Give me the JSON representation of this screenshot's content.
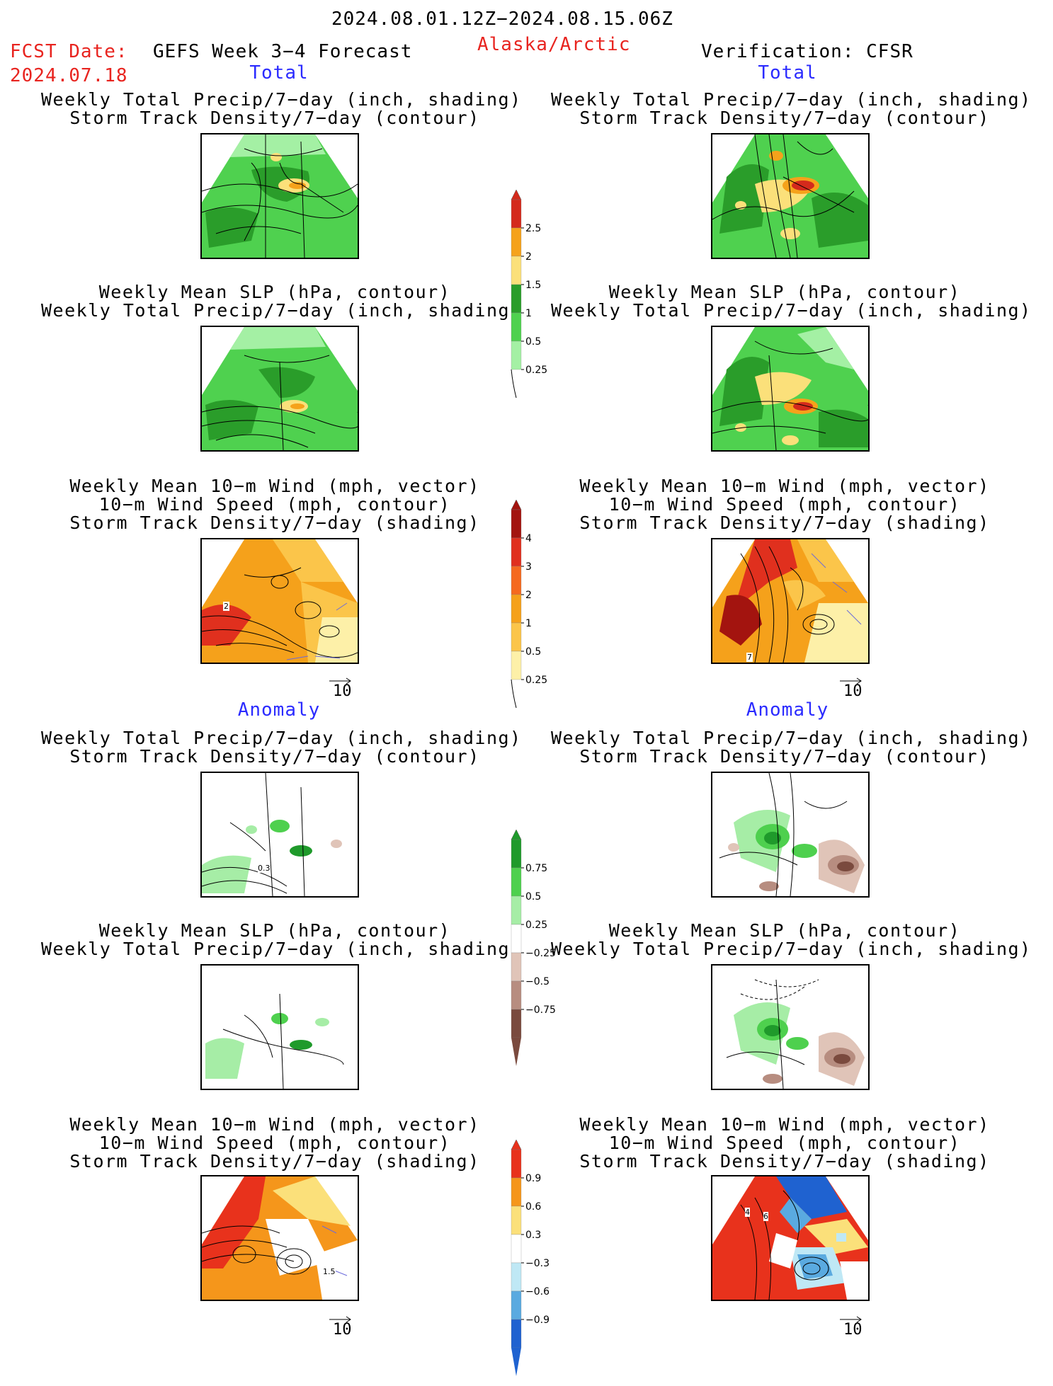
{
  "header": {
    "date_range": "2024.08.01.12Z−2024.08.15.06Z",
    "fcst_label": "FCST Date:",
    "fcst_date": "2024.07.18",
    "forecast_title": "GEFS Week 3−4 Forecast",
    "region": "Alaska/Arctic",
    "verification": "Verification: CFSR"
  },
  "sections": {
    "total_left": "Total",
    "total_right": "Total",
    "anomaly_left": "Anomaly",
    "anomaly_right": "Anomaly"
  },
  "panel_titles": {
    "precip_storm": "Weekly Total Precip/7−day (inch, shading)\nStorm Track Density/7−day (contour)",
    "slp_precip": "Weekly Mean SLP (hPa, contour)\nWeekly Total Precip/7−day (inch, shading)",
    "wind_storm": "Weekly Mean 10−m Wind (mph, vector)\n10−m Wind Speed (mph, contour)\nStorm Track Density/7−day (shading)"
  },
  "vector_ref_label": "10",
  "contour_labels": {
    "wind_total_left": "2",
    "wind_total_right": "7",
    "precip_anom_left": "0.3",
    "wind_anom_left": "1.5",
    "wind_anom_right_a": "4",
    "wind_anom_right_b": "6"
  },
  "colorbars": {
    "precip_total": {
      "ticks": [
        "2.5",
        "2",
        "1.5",
        "1",
        "0.5",
        "0.25"
      ],
      "colors": [
        "#d42a1c",
        "#f5a21b",
        "#fbe07a",
        "#2a9d2a",
        "#4fd14f",
        "#a4f0a4"
      ]
    },
    "storm_total": {
      "ticks": [
        "4",
        "3",
        "2",
        "1",
        "0.5",
        "0.25"
      ],
      "colors": [
        "#a3140f",
        "#e0301e",
        "#f56a1f",
        "#f5a11b",
        "#fbc54a",
        "#fdf0a8"
      ]
    },
    "precip_anom": {
      "ticks": [
        "0.75",
        "0.5",
        "0.25",
        "−0.25",
        "−0.5",
        "−0.75"
      ],
      "colors": [
        "#1f9a2b",
        "#4ed04e",
        "#a6eda6",
        "#ffffff",
        "#e0c4b8",
        "#b78d80",
        "#7a4a3e"
      ]
    },
    "storm_anom": {
      "ticks": [
        "0.9",
        "0.6",
        "0.3",
        "−0.3",
        "−0.6",
        "−0.9"
      ],
      "colors": [
        "#e8321c",
        "#f5961b",
        "#fbe07a",
        "#ffffff",
        "#bfe8f5",
        "#5aaae0",
        "#1f62d0"
      ]
    }
  },
  "palette": {
    "header_red": "#e8241f",
    "section_blue": "#2b2bff"
  }
}
